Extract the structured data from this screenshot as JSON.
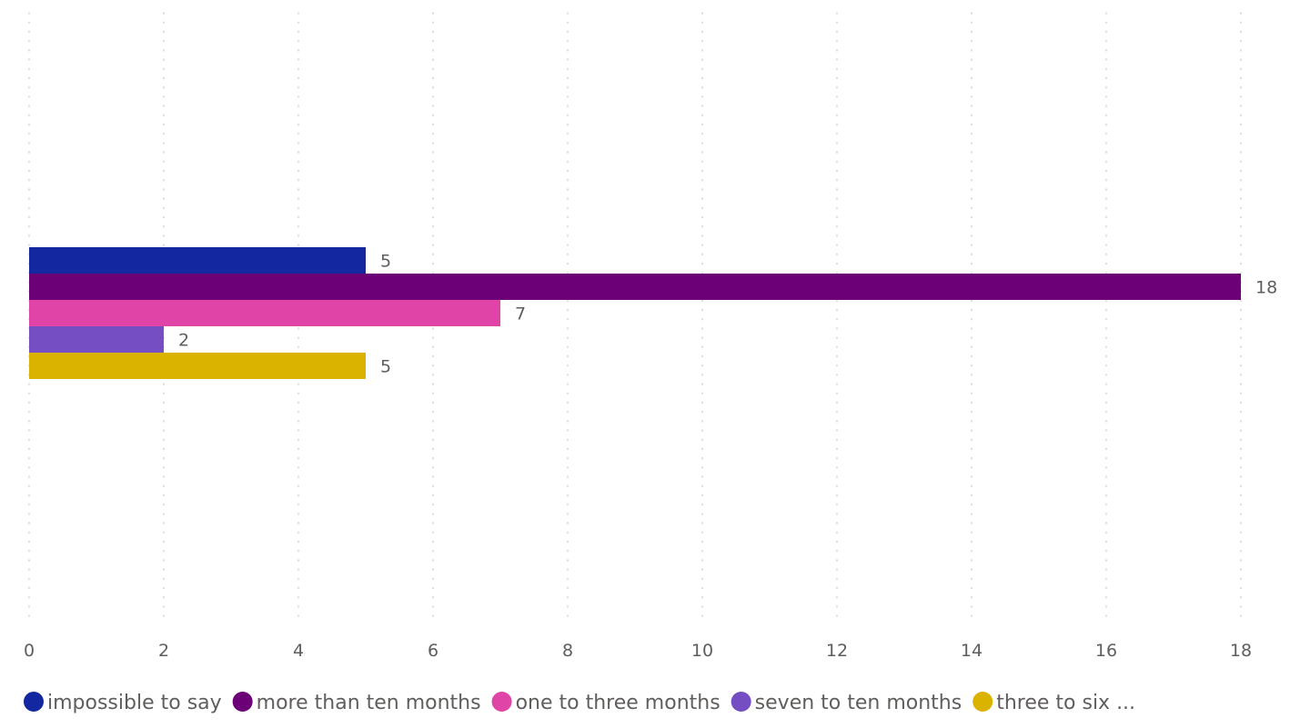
{
  "chart_data": {
    "type": "bar",
    "orientation": "horizontal",
    "categories": [
      ""
    ],
    "series": [
      {
        "name": "impossible to say",
        "legend_label": "impossible to say",
        "values": [
          5
        ],
        "color": "#1327a1"
      },
      {
        "name": "more than ten months",
        "legend_label": "more than ten months",
        "values": [
          18
        ],
        "color": "#6b0077"
      },
      {
        "name": "one to three months",
        "legend_label": "one to three months",
        "values": [
          7
        ],
        "color": "#e044a7"
      },
      {
        "name": "seven to ten months",
        "legend_label": "seven to ten months",
        "values": [
          2
        ],
        "color": "#744ec2"
      },
      {
        "name": "three to six months",
        "legend_label": "three to six ...",
        "values": [
          5
        ],
        "color": "#d9b300"
      }
    ],
    "xlim": [
      0,
      18
    ],
    "xticks": [
      "0",
      "2",
      "4",
      "6",
      "8",
      "10",
      "12",
      "14",
      "16",
      "18"
    ],
    "grid": true,
    "legend_position": "bottom-left",
    "data_labels": true
  }
}
